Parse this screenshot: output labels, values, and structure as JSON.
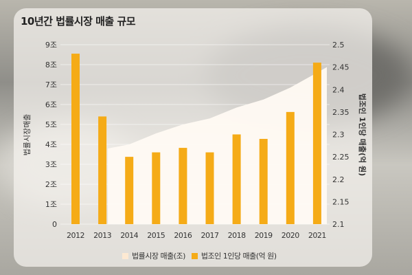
{
  "title": "10년간 법률시장 매출 규모",
  "colors": {
    "bar": "#f5ab17",
    "area": "#fffaf3"
  },
  "chart_data": {
    "type": "bar+area",
    "title": "10년간 법률시장 매출 규모",
    "categories": [
      "2012",
      "2013",
      "2014",
      "2015",
      "2016",
      "2017",
      "2018",
      "2019",
      "2020",
      "2021"
    ],
    "left_axis": {
      "label": "법률시장매출",
      "range": [
        0,
        9
      ],
      "ticks": [
        "0",
        "1조",
        "2조",
        "3조",
        "4조",
        "5조",
        "6조",
        "7조",
        "8조",
        "9조"
      ]
    },
    "right_axis": {
      "label": "법조인 1인당 매출(억 원)",
      "range": [
        2.1,
        2.5
      ],
      "ticks": [
        "2.1",
        "2.15",
        "2.2",
        "2.25",
        "2.3",
        "2.35",
        "2.4",
        "2.45",
        "2.5"
      ]
    },
    "series": [
      {
        "name": "법률시장 매출(조)",
        "type": "area",
        "axis": "left",
        "x": [
          "2014",
          "2015",
          "2016",
          "2017",
          "2018",
          "2019",
          "2020",
          "2021"
        ],
        "values": [
          4.0,
          4.55,
          5.0,
          5.3,
          5.85,
          6.25,
          6.85,
          7.6
        ]
      },
      {
        "name": "법조인 1인당 매출(억 원)",
        "type": "bar",
        "axis": "right",
        "values": [
          2.48,
          2.34,
          2.25,
          2.26,
          2.27,
          2.26,
          2.3,
          2.29,
          2.35,
          2.46
        ]
      }
    ],
    "grid": true,
    "legend": "bottom"
  }
}
